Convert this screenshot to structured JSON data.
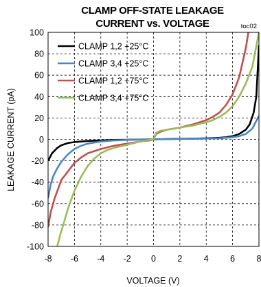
{
  "chart_data": {
    "type": "line",
    "title_line1": "CLAMP OFF-STATE LEAKAGE",
    "title_line2": "CURRENT vs. VOLTAGE",
    "tag": "toc02",
    "xlabel": "VOLTAGE (V)",
    "ylabel": "LEAKAGE CURRENT (pA)",
    "xlim": [
      -8,
      8
    ],
    "ylim": [
      -100,
      100
    ],
    "x_ticks": [
      -8,
      -6,
      -4,
      -2,
      0,
      2,
      4,
      6,
      8
    ],
    "y_ticks": [
      100,
      80,
      60,
      40,
      20,
      0,
      -20,
      -40,
      -60,
      -80,
      -100
    ],
    "grid": true,
    "legend_position": "top-left",
    "series": [
      {
        "name": "CLAMP 1,2 +25°C",
        "color": "#000000",
        "points": [
          [
            -8,
            -20
          ],
          [
            -7.7,
            -13
          ],
          [
            -7.3,
            -8
          ],
          [
            -7,
            -5.5
          ],
          [
            -6.5,
            -3.5
          ],
          [
            -6,
            -2.5
          ],
          [
            -5,
            -1.5
          ],
          [
            -4,
            -1
          ],
          [
            -3,
            -0.5
          ],
          [
            -2,
            -0.3
          ],
          [
            -1,
            -0.1
          ],
          [
            0,
            0
          ],
          [
            1,
            0.3
          ],
          [
            2,
            0.5
          ],
          [
            3,
            0.7
          ],
          [
            4,
            1
          ],
          [
            5,
            1.5
          ],
          [
            5.5,
            2
          ],
          [
            6,
            3
          ],
          [
            6.5,
            5
          ],
          [
            7,
            9
          ],
          [
            7.3,
            14
          ],
          [
            7.6,
            25
          ],
          [
            7.8,
            40
          ],
          [
            8,
            88
          ]
        ]
      },
      {
        "name": "CLAMP 3,4 +25°C",
        "color": "#4a86c6",
        "points": [
          [
            -8,
            -55
          ],
          [
            -7.8,
            -42
          ],
          [
            -7.6,
            -34
          ],
          [
            -7.3,
            -27
          ],
          [
            -7,
            -21
          ],
          [
            -6.5,
            -14
          ],
          [
            -6,
            -9
          ],
          [
            -5.5,
            -6
          ],
          [
            -5,
            -4
          ],
          [
            -4,
            -2
          ],
          [
            -3,
            -1
          ],
          [
            -2,
            -0.5
          ],
          [
            -1,
            -0.2
          ],
          [
            0,
            0
          ],
          [
            1,
            0.2
          ],
          [
            2,
            0.4
          ],
          [
            3,
            0.6
          ],
          [
            4,
            0.8
          ],
          [
            5,
            1
          ],
          [
            5.5,
            1.5
          ],
          [
            6,
            2
          ],
          [
            6.5,
            3
          ],
          [
            7,
            5
          ],
          [
            7.5,
            10
          ],
          [
            8,
            22
          ]
        ]
      },
      {
        "name": "CLAMP 1,2 +75°C",
        "color": "#c0504d",
        "points": [
          [
            -8,
            -82
          ],
          [
            -7.8,
            -68
          ],
          [
            -7.5,
            -55
          ],
          [
            -7.2,
            -45
          ],
          [
            -7,
            -38
          ],
          [
            -6.5,
            -30
          ],
          [
            -6,
            -22
          ],
          [
            -5.5,
            -17
          ],
          [
            -5,
            -13
          ],
          [
            -4.5,
            -11
          ],
          [
            -4,
            -9
          ],
          [
            -3,
            -6
          ],
          [
            -2,
            -4
          ],
          [
            -1,
            -2
          ],
          [
            -0.3,
            -1
          ],
          [
            0,
            0
          ],
          [
            0.2,
            5
          ],
          [
            0.5,
            7
          ],
          [
            1,
            9
          ],
          [
            2,
            11
          ],
          [
            3,
            14
          ],
          [
            4,
            18
          ],
          [
            4.5,
            21
          ],
          [
            5,
            25
          ],
          [
            5.5,
            32
          ],
          [
            6,
            42
          ],
          [
            6.5,
            58
          ],
          [
            7,
            85
          ],
          [
            7.2,
            100
          ]
        ]
      },
      {
        "name": "CLAMP 3,4 +75°C",
        "color": "#9bbb59",
        "points": [
          [
            -7.3,
            -100
          ],
          [
            -7.1,
            -90
          ],
          [
            -6.8,
            -78
          ],
          [
            -6.5,
            -65
          ],
          [
            -6,
            -48
          ],
          [
            -5.5,
            -35
          ],
          [
            -5,
            -25
          ],
          [
            -4.5,
            -18
          ],
          [
            -4,
            -13
          ],
          [
            -3.5,
            -10
          ],
          [
            -3,
            -8
          ],
          [
            -2,
            -5
          ],
          [
            -1,
            -2
          ],
          [
            -0.3,
            -0.5
          ],
          [
            0,
            0
          ],
          [
            0.2,
            6
          ],
          [
            0.5,
            8
          ],
          [
            1,
            9
          ],
          [
            2,
            11
          ],
          [
            3,
            13
          ],
          [
            4,
            16
          ],
          [
            4.5,
            18
          ],
          [
            5,
            21
          ],
          [
            5.5,
            25
          ],
          [
            6,
            31
          ],
          [
            6.5,
            40
          ],
          [
            7,
            52
          ],
          [
            7.5,
            68
          ],
          [
            8,
            100
          ]
        ]
      }
    ]
  }
}
